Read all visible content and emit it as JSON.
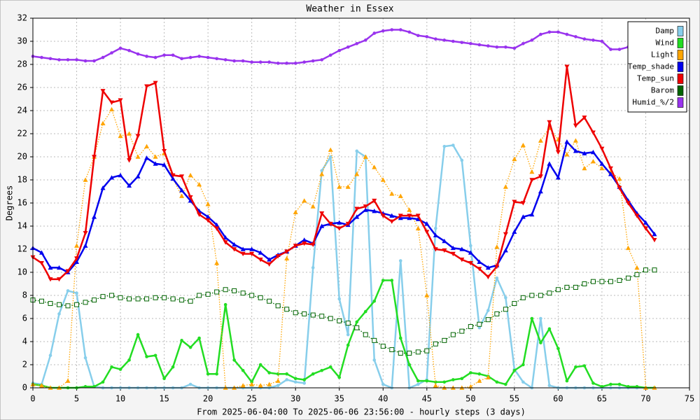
{
  "chart_data": {
    "type": "line",
    "title": "Weather in Essex",
    "y_label": "Degrees",
    "x_label": "From 2025-06-04:00 To 2025-06-06 23:56:00 - hourly steps (3 days)",
    "xlim": [
      0,
      75
    ],
    "xticks": [
      0,
      5,
      10,
      15,
      20,
      25,
      30,
      35,
      40,
      45,
      50,
      55,
      60,
      65,
      70,
      75
    ],
    "ylim": [
      0,
      32
    ],
    "yticks": [
      0,
      2,
      4,
      6,
      8,
      10,
      12,
      14,
      16,
      18,
      20,
      22,
      24,
      26,
      28,
      30,
      32
    ],
    "grid": true,
    "legend": "upper right",
    "x": [
      0,
      1,
      2,
      3,
      4,
      5,
      6,
      7,
      8,
      9,
      10,
      11,
      12,
      13,
      14,
      15,
      16,
      17,
      18,
      19,
      20,
      21,
      22,
      23,
      24,
      25,
      26,
      27,
      28,
      29,
      30,
      31,
      32,
      33,
      34,
      35,
      36,
      37,
      38,
      39,
      40,
      41,
      42,
      43,
      44,
      45,
      46,
      47,
      48,
      49,
      50,
      51,
      52,
      53,
      54,
      55,
      56,
      57,
      58,
      59,
      60,
      61,
      62,
      63,
      64,
      65,
      66,
      67,
      68,
      69,
      70,
      71
    ],
    "series": [
      {
        "name": "Damp",
        "color": "#87ceeb",
        "marker": "circle",
        "dashed": false,
        "values": [
          0.4,
          0.3,
          2.8,
          6.4,
          8.4,
          8.2,
          2.6,
          0.1,
          0,
          0,
          0,
          0,
          0,
          0,
          0,
          0,
          0,
          0,
          0.3,
          0,
          0,
          0,
          0,
          0,
          0,
          0,
          0,
          0,
          0.2,
          0.7,
          0.5,
          0.4,
          10.4,
          18.8,
          20.0,
          7.7,
          4.6,
          20.5,
          20.0,
          2.4,
          0.3,
          0,
          11.0,
          0,
          0.3,
          0.7,
          13.8,
          20.9,
          21.0,
          19.7,
          12.3,
          5.2,
          6.7,
          9.5,
          7.8,
          1.6,
          0.5,
          0,
          6.0,
          0.2,
          0,
          0,
          0,
          0,
          0,
          0,
          0,
          0,
          0,
          0,
          0,
          0
        ]
      },
      {
        "name": "Wind",
        "color": "#22dd22",
        "marker": "circle",
        "dashed": false,
        "values": [
          0.3,
          0.2,
          0,
          0,
          0,
          0,
          0.1,
          0.1,
          0.5,
          1.8,
          1.6,
          2.4,
          4.6,
          2.7,
          2.8,
          0.8,
          1.8,
          4.1,
          3.5,
          4.3,
          1.2,
          1.2,
          7.2,
          2.4,
          1.5,
          0.5,
          2.0,
          1.3,
          1.2,
          1.2,
          0.8,
          0.7,
          1.2,
          1.5,
          1.8,
          0.9,
          3.7,
          5.7,
          6.6,
          7.5,
          9.3,
          9.3,
          4.3,
          2.0,
          0.6,
          0.6,
          0.5,
          0.5,
          0.7,
          0.8,
          1.3,
          1.2,
          1.0,
          0.5,
          0.3,
          1.5,
          2.0,
          6.0,
          3.9,
          5.1,
          3.4,
          0.6,
          1.8,
          1.9,
          0.4,
          0.1,
          0.3,
          0.3,
          0.1,
          0.1,
          0,
          0
        ]
      },
      {
        "name": "Light",
        "color": "#ffa500",
        "marker": "triangle-up",
        "dashed": true,
        "values": [
          0.3,
          0.2,
          0,
          0,
          0.6,
          12.3,
          18.0,
          20.0,
          22.9,
          24.1,
          21.8,
          22.0,
          20.0,
          20.9,
          20.0,
          20.3,
          18.1,
          16.6,
          18.4,
          17.6,
          15.9,
          10.8,
          0,
          0,
          0.2,
          0.3,
          0.2,
          0.3,
          0.6,
          11.2,
          15.2,
          16.2,
          15.7,
          18.5,
          20.6,
          17.4,
          17.4,
          18.5,
          20.0,
          19.1,
          18.0,
          16.8,
          16.6,
          15.4,
          13.8,
          8.0,
          0.2,
          0,
          0,
          0,
          0.1,
          0.6,
          0.9,
          12.2,
          17.4,
          19.8,
          21.0,
          18.7,
          21.4,
          22.5,
          21.5,
          20.2,
          21.4,
          19.0,
          19.6,
          19.0,
          18.7,
          18.1,
          12.1,
          10.4,
          0,
          0
        ]
      },
      {
        "name": "Temp_shade",
        "color": "#0000ee",
        "marker": "triangle-up",
        "dashed": false,
        "values": [
          12.1,
          11.7,
          10.4,
          10.4,
          10.0,
          10.9,
          12.3,
          14.8,
          17.3,
          18.2,
          18.4,
          17.5,
          18.3,
          19.9,
          19.4,
          19.3,
          18.1,
          17.1,
          16.2,
          15.3,
          14.8,
          14.1,
          13.0,
          12.4,
          12.0,
          12.0,
          11.7,
          11.1,
          11.5,
          11.8,
          12.3,
          12.8,
          12.5,
          14.0,
          14.2,
          14.3,
          14.1,
          14.8,
          15.4,
          15.3,
          15.1,
          14.9,
          14.7,
          14.7,
          14.6,
          14.2,
          13.2,
          12.7,
          12.1,
          12.0,
          11.7,
          10.9,
          10.4,
          10.6,
          11.9,
          13.5,
          14.8,
          15.0,
          17.0,
          19.4,
          18.2,
          21.3,
          20.5,
          20.3,
          20.4,
          19.4,
          18.5,
          17.4,
          16.2,
          15.1,
          14.3,
          13.3
        ]
      },
      {
        "name": "Temp_sun",
        "color": "#ee0000",
        "marker": "triangle-down",
        "dashed": false,
        "values": [
          11.3,
          10.8,
          9.4,
          9.4,
          10.1,
          11.2,
          13.4,
          20.0,
          25.7,
          24.7,
          24.9,
          19.7,
          21.8,
          26.1,
          26.4,
          20.5,
          18.4,
          18.3,
          16.5,
          15.0,
          14.5,
          13.8,
          12.6,
          12.0,
          11.6,
          11.6,
          11.1,
          10.7,
          11.4,
          11.8,
          12.3,
          12.5,
          12.4,
          15.1,
          14.2,
          13.8,
          14.2,
          15.5,
          15.7,
          16.2,
          14.9,
          14.4,
          14.9,
          14.9,
          14.9,
          13.5,
          12.0,
          11.9,
          11.6,
          11.1,
          10.8,
          10.3,
          9.6,
          10.5,
          13.3,
          16.1,
          16.0,
          18.0,
          18.3,
          23.0,
          20.4,
          27.8,
          22.7,
          23.4,
          22.1,
          20.7,
          19.0,
          17.3,
          16.0,
          14.9,
          13.8,
          12.8
        ]
      },
      {
        "name": "Barom",
        "color": "#006400",
        "marker": "square",
        "dashed": true,
        "values": [
          7.6,
          7.5,
          7.3,
          7.2,
          7.1,
          7.2,
          7.4,
          7.6,
          7.9,
          8.0,
          7.8,
          7.7,
          7.7,
          7.7,
          7.8,
          7.8,
          7.7,
          7.6,
          7.5,
          8.0,
          8.1,
          8.3,
          8.5,
          8.4,
          8.2,
          8.0,
          7.8,
          7.5,
          7.1,
          6.8,
          6.5,
          6.4,
          6.3,
          6.2,
          6.0,
          5.8,
          5.6,
          5.2,
          4.6,
          4.1,
          3.6,
          3.3,
          3.0,
          3.0,
          3.1,
          3.2,
          3.8,
          4.1,
          4.6,
          4.9,
          5.3,
          5.5,
          5.9,
          6.4,
          6.8,
          7.3,
          7.8,
          8.0,
          8.0,
          8.2,
          8.5,
          8.7,
          8.7,
          9.0,
          9.2,
          9.2,
          9.2,
          9.3,
          9.5,
          9.8,
          10.2,
          10.2
        ]
      },
      {
        "name": "Humid_%/2",
        "color": "#9933ee",
        "marker": "circle",
        "dashed": false,
        "values": [
          28.7,
          28.6,
          28.5,
          28.4,
          28.4,
          28.4,
          28.3,
          28.3,
          28.6,
          29.0,
          29.4,
          29.2,
          28.9,
          28.7,
          28.6,
          28.8,
          28.8,
          28.5,
          28.6,
          28.7,
          28.6,
          28.5,
          28.4,
          28.3,
          28.3,
          28.2,
          28.2,
          28.2,
          28.1,
          28.1,
          28.1,
          28.2,
          28.3,
          28.4,
          28.8,
          29.2,
          29.5,
          29.8,
          30.1,
          30.7,
          30.9,
          31.0,
          31.0,
          30.8,
          30.5,
          30.4,
          30.2,
          30.1,
          30.0,
          29.9,
          29.8,
          29.7,
          29.6,
          29.5,
          29.5,
          29.4,
          29.8,
          30.1,
          30.6,
          30.8,
          30.8,
          30.6,
          30.4,
          30.2,
          30.1,
          30.0,
          29.3,
          29.3,
          29.5,
          29.9,
          29.9,
          30.0
        ]
      }
    ]
  }
}
